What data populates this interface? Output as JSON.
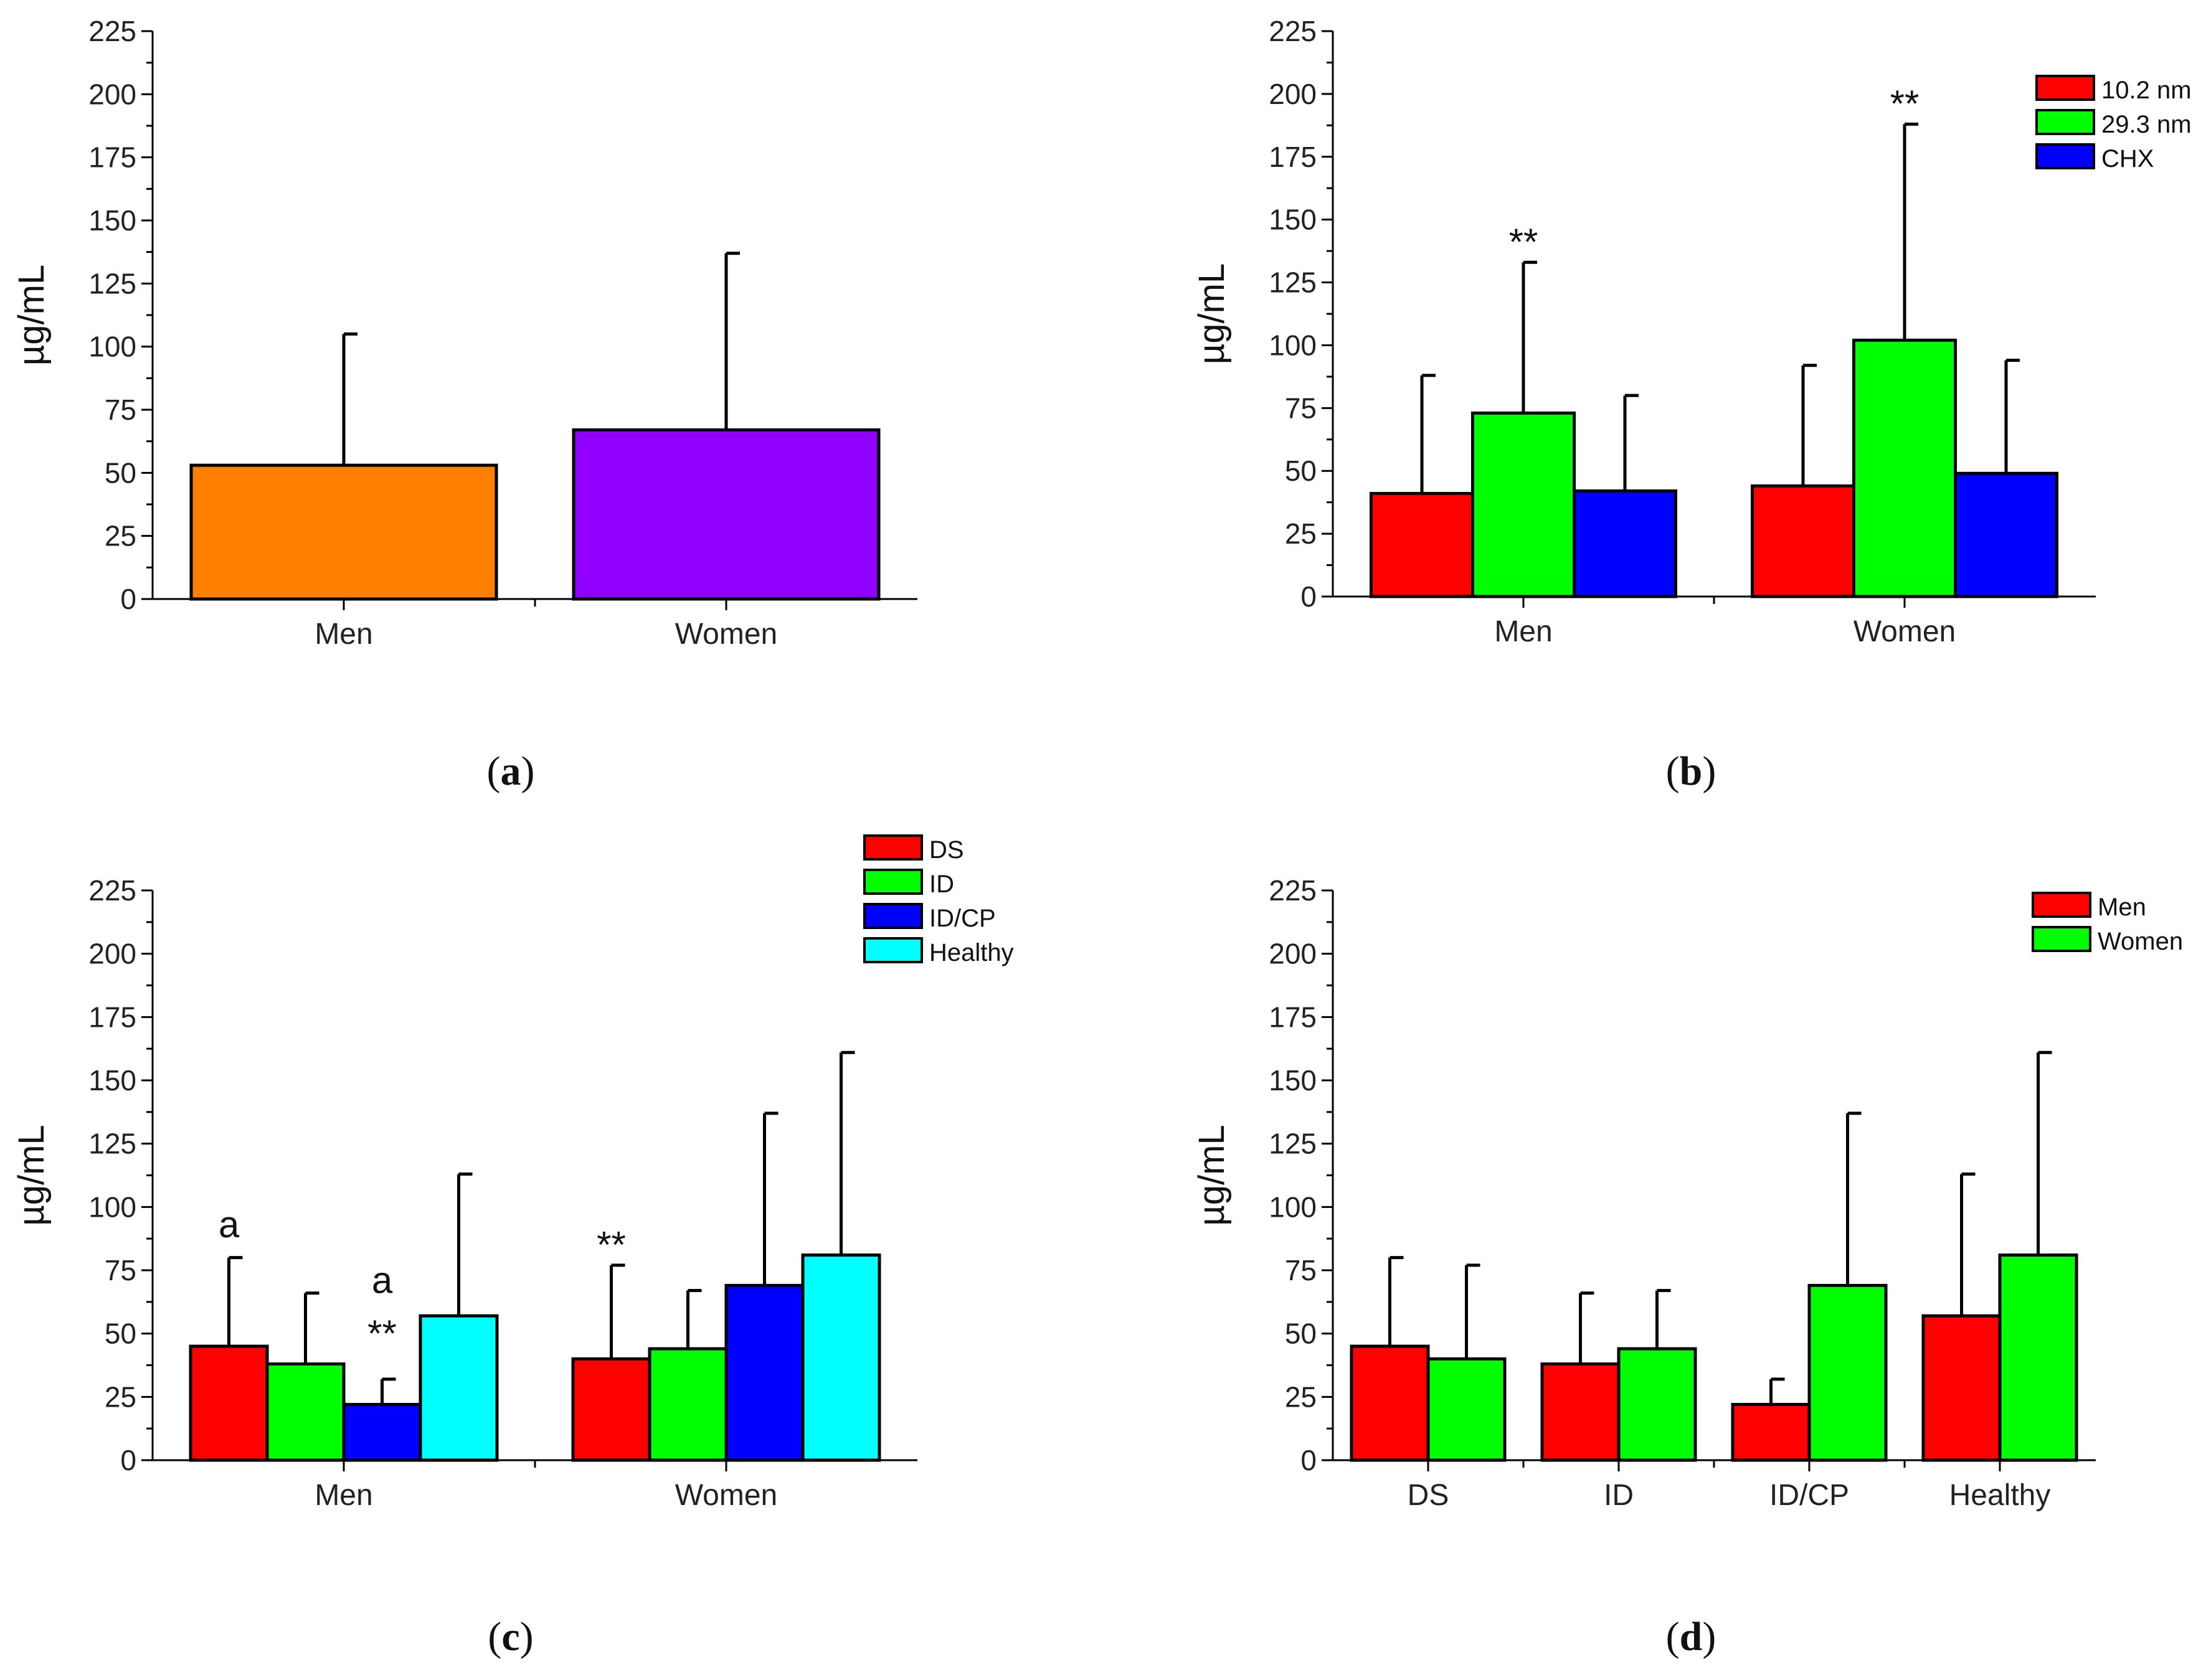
{
  "colors": {
    "orange": "#FF8000",
    "purple": "#8F00FF",
    "red": "#FF0000",
    "green": "#00FF00",
    "blue": "#0000FF",
    "cyan": "#00FFFF"
  },
  "chart_data": [
    {
      "id": "a",
      "type": "bar",
      "caption_letter": "a",
      "ylabel": "µg/mL",
      "ylim": [
        0,
        225
      ],
      "yticks": [
        "0",
        "25",
        "50",
        "75",
        "100",
        "125",
        "150",
        "175",
        "200",
        "225"
      ],
      "categories": [
        "Men",
        "Women"
      ],
      "series": [
        {
          "name": "",
          "color_key": "orange",
          "values": [
            53,
            null
          ],
          "errors": [
            52,
            null
          ]
        },
        {
          "name": "",
          "color_key": "purple",
          "values": [
            null,
            67
          ],
          "errors": [
            null,
            70
          ]
        }
      ],
      "single_per_category": true,
      "legend": [],
      "annotations": []
    },
    {
      "id": "b",
      "type": "bar",
      "caption_letter": "b",
      "ylabel": "µg/mL",
      "ylim": [
        0,
        225
      ],
      "yticks": [
        "0",
        "25",
        "50",
        "75",
        "100",
        "125",
        "150",
        "175",
        "200",
        "225"
      ],
      "categories": [
        "Men",
        "Women"
      ],
      "series": [
        {
          "name": "10.2 nm",
          "color_key": "red",
          "values": [
            41,
            44
          ],
          "errors": [
            47,
            48
          ]
        },
        {
          "name": "29.3 nm",
          "color_key": "green",
          "values": [
            73,
            102
          ],
          "errors": [
            60,
            86
          ]
        },
        {
          "name": "CHX",
          "color_key": "blue",
          "values": [
            42,
            49
          ],
          "errors": [
            38,
            45
          ]
        }
      ],
      "legend": [
        "10.2 nm",
        "29.3 nm",
        "CHX"
      ],
      "annotations": [
        {
          "text": "**",
          "category": 0,
          "series": 1,
          "value": 136
        },
        {
          "text": "**",
          "category": 1,
          "series": 1,
          "value": 191
        }
      ]
    },
    {
      "id": "c",
      "type": "bar",
      "caption_letter": "c",
      "ylabel": "µg/mL",
      "ylim": [
        0,
        225
      ],
      "yticks": [
        "0",
        "25",
        "50",
        "75",
        "100",
        "125",
        "150",
        "175",
        "200",
        "225"
      ],
      "categories": [
        "Men",
        "Women"
      ],
      "series": [
        {
          "name": "DS",
          "color_key": "red",
          "values": [
            45,
            40
          ],
          "errors": [
            35,
            37
          ]
        },
        {
          "name": "ID",
          "color_key": "green",
          "values": [
            38,
            44
          ],
          "errors": [
            28,
            23
          ]
        },
        {
          "name": "ID/CP",
          "color_key": "blue",
          "values": [
            22,
            69
          ],
          "errors": [
            10,
            68
          ]
        },
        {
          "name": "Healthy",
          "color_key": "cyan",
          "values": [
            57,
            81
          ],
          "errors": [
            56,
            80
          ]
        }
      ],
      "legend": [
        "DS",
        "ID",
        "ID/CP",
        "Healthy"
      ],
      "annotations": [
        {
          "text": "a",
          "category": 0,
          "series": 0,
          "value": 88
        },
        {
          "text": "a",
          "category": 0,
          "series": 2,
          "value": 66
        },
        {
          "text": "**",
          "category": 0,
          "series": 2,
          "value": 45
        },
        {
          "text": "**",
          "category": 1,
          "series": 0,
          "value": 80
        }
      ]
    },
    {
      "id": "d",
      "type": "bar",
      "caption_letter": "d",
      "ylabel": "µg/mL",
      "ylim": [
        0,
        225
      ],
      "yticks": [
        "0",
        "25",
        "50",
        "75",
        "100",
        "125",
        "150",
        "175",
        "200",
        "225"
      ],
      "categories": [
        "DS",
        "ID",
        "ID/CP",
        "Healthy"
      ],
      "series": [
        {
          "name": "Men",
          "color_key": "red",
          "values": [
            45,
            38,
            22,
            57
          ],
          "errors": [
            35,
            28,
            10,
            56
          ]
        },
        {
          "name": "Women",
          "color_key": "green",
          "values": [
            40,
            44,
            69,
            81
          ],
          "errors": [
            37,
            23,
            68,
            80
          ]
        }
      ],
      "legend": [
        "Men",
        "Women"
      ],
      "annotations": []
    }
  ]
}
